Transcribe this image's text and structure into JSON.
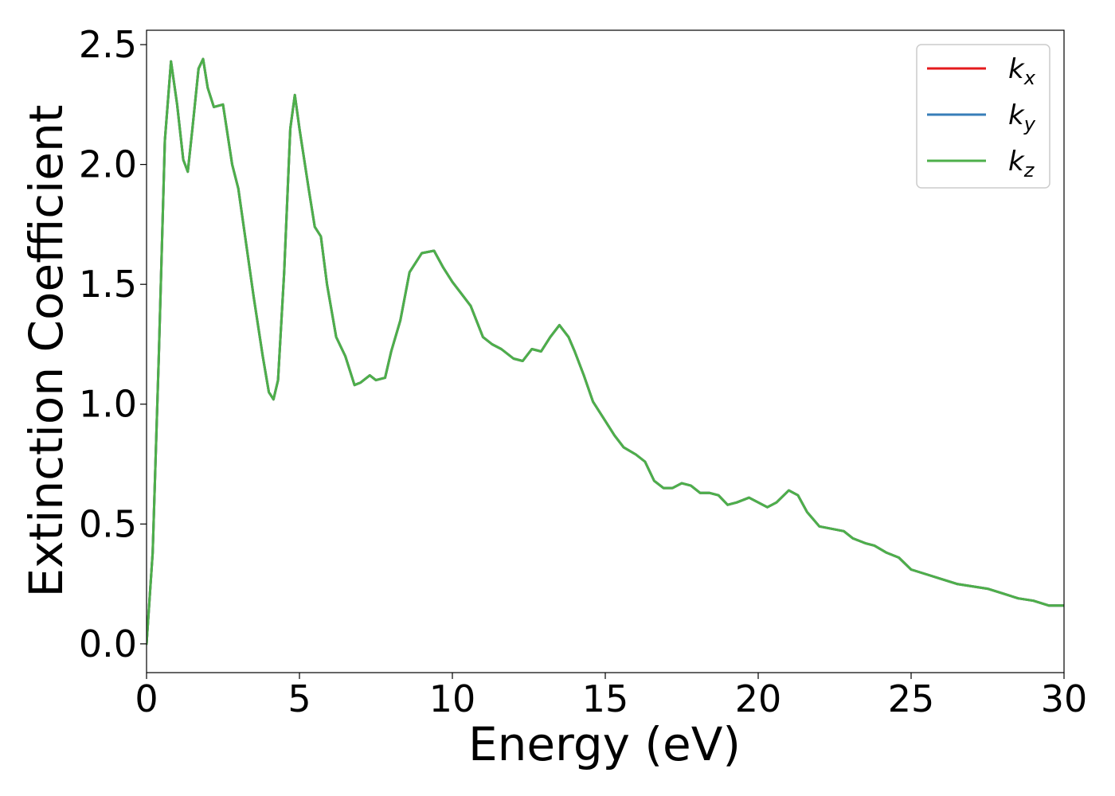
{
  "chart_data": {
    "type": "line",
    "title": "",
    "xlabel": "Energy (eV)",
    "ylabel": "Extinction Coefficient",
    "xlim": [
      0,
      30
    ],
    "ylim": [
      -0.12,
      2.56
    ],
    "xticks": [
      0,
      5,
      10,
      15,
      20,
      25,
      30
    ],
    "yticks": [
      0.0,
      0.5,
      1.0,
      1.5,
      2.0,
      2.5
    ],
    "xtick_labels": [
      "0",
      "5",
      "10",
      "15",
      "20",
      "25",
      "30"
    ],
    "ytick_labels": [
      "0.0",
      "0.5",
      "1.0",
      "1.5",
      "2.0",
      "2.5"
    ],
    "grid": false,
    "legend_position": "top-right",
    "x": [
      0,
      0.2,
      0.4,
      0.6,
      0.8,
      1.0,
      1.2,
      1.35,
      1.5,
      1.7,
      1.85,
      2.0,
      2.2,
      2.5,
      2.8,
      3.0,
      3.2,
      3.5,
      3.8,
      4.0,
      4.15,
      4.3,
      4.5,
      4.7,
      4.85,
      5.0,
      5.3,
      5.5,
      5.7,
      5.9,
      6.2,
      6.5,
      6.8,
      7.0,
      7.3,
      7.5,
      7.8,
      8.0,
      8.3,
      8.6,
      9.0,
      9.4,
      9.7,
      10.0,
      10.3,
      10.6,
      11.0,
      11.3,
      11.6,
      12.0,
      12.3,
      12.6,
      12.9,
      13.2,
      13.5,
      13.8,
      14.0,
      14.3,
      14.6,
      15.0,
      15.3,
      15.6,
      16.0,
      16.3,
      16.6,
      16.9,
      17.2,
      17.5,
      17.8,
      18.1,
      18.4,
      18.7,
      19.0,
      19.3,
      19.7,
      20.0,
      20.3,
      20.6,
      21.0,
      21.3,
      21.6,
      22.0,
      22.4,
      22.8,
      23.1,
      23.5,
      23.8,
      24.2,
      24.6,
      25.0,
      25.5,
      26.0,
      26.5,
      27.0,
      27.5,
      28.0,
      28.5,
      29.0,
      29.5,
      30.0
    ],
    "series": [
      {
        "name": "k_x",
        "color": "#e41a1c",
        "values": [
          0.0,
          0.38,
          1.2,
          2.1,
          2.43,
          2.25,
          2.02,
          1.97,
          2.15,
          2.4,
          2.44,
          2.32,
          2.24,
          2.25,
          2.0,
          1.9,
          1.72,
          1.45,
          1.2,
          1.05,
          1.02,
          1.1,
          1.55,
          2.15,
          2.29,
          2.15,
          1.9,
          1.74,
          1.7,
          1.5,
          1.28,
          1.2,
          1.08,
          1.09,
          1.12,
          1.1,
          1.11,
          1.22,
          1.35,
          1.55,
          1.63,
          1.64,
          1.57,
          1.51,
          1.46,
          1.41,
          1.28,
          1.25,
          1.23,
          1.19,
          1.18,
          1.23,
          1.22,
          1.28,
          1.33,
          1.28,
          1.22,
          1.12,
          1.01,
          0.93,
          0.87,
          0.82,
          0.79,
          0.76,
          0.68,
          0.65,
          0.65,
          0.67,
          0.66,
          0.63,
          0.63,
          0.62,
          0.58,
          0.59,
          0.61,
          0.59,
          0.57,
          0.59,
          0.64,
          0.62,
          0.55,
          0.49,
          0.48,
          0.47,
          0.44,
          0.42,
          0.41,
          0.38,
          0.36,
          0.31,
          0.29,
          0.27,
          0.25,
          0.24,
          0.23,
          0.21,
          0.19,
          0.18,
          0.16,
          0.16
        ]
      },
      {
        "name": "k_y",
        "color": "#377eb8",
        "values": [
          0.0,
          0.38,
          1.2,
          2.1,
          2.43,
          2.25,
          2.02,
          1.97,
          2.15,
          2.4,
          2.44,
          2.32,
          2.24,
          2.25,
          2.0,
          1.9,
          1.72,
          1.45,
          1.2,
          1.05,
          1.02,
          1.1,
          1.55,
          2.15,
          2.29,
          2.15,
          1.9,
          1.74,
          1.7,
          1.5,
          1.28,
          1.2,
          1.08,
          1.09,
          1.12,
          1.1,
          1.11,
          1.22,
          1.35,
          1.55,
          1.63,
          1.64,
          1.57,
          1.51,
          1.46,
          1.41,
          1.28,
          1.25,
          1.23,
          1.19,
          1.18,
          1.23,
          1.22,
          1.28,
          1.33,
          1.28,
          1.22,
          1.12,
          1.01,
          0.93,
          0.87,
          0.82,
          0.79,
          0.76,
          0.68,
          0.65,
          0.65,
          0.67,
          0.66,
          0.63,
          0.63,
          0.62,
          0.58,
          0.59,
          0.61,
          0.59,
          0.57,
          0.59,
          0.64,
          0.62,
          0.55,
          0.49,
          0.48,
          0.47,
          0.44,
          0.42,
          0.41,
          0.38,
          0.36,
          0.31,
          0.29,
          0.27,
          0.25,
          0.24,
          0.23,
          0.21,
          0.19,
          0.18,
          0.16,
          0.16
        ]
      },
      {
        "name": "k_z",
        "color": "#4daf4a",
        "values": [
          0.0,
          0.38,
          1.2,
          2.1,
          2.43,
          2.25,
          2.02,
          1.97,
          2.15,
          2.4,
          2.44,
          2.32,
          2.24,
          2.25,
          2.0,
          1.9,
          1.72,
          1.45,
          1.2,
          1.05,
          1.02,
          1.1,
          1.55,
          2.15,
          2.29,
          2.15,
          1.9,
          1.74,
          1.7,
          1.5,
          1.28,
          1.2,
          1.08,
          1.09,
          1.12,
          1.1,
          1.11,
          1.22,
          1.35,
          1.55,
          1.63,
          1.64,
          1.57,
          1.51,
          1.46,
          1.41,
          1.28,
          1.25,
          1.23,
          1.19,
          1.18,
          1.23,
          1.22,
          1.28,
          1.33,
          1.28,
          1.22,
          1.12,
          1.01,
          0.93,
          0.87,
          0.82,
          0.79,
          0.76,
          0.68,
          0.65,
          0.65,
          0.67,
          0.66,
          0.63,
          0.63,
          0.62,
          0.58,
          0.59,
          0.61,
          0.59,
          0.57,
          0.59,
          0.64,
          0.62,
          0.55,
          0.49,
          0.48,
          0.47,
          0.44,
          0.42,
          0.41,
          0.38,
          0.36,
          0.31,
          0.29,
          0.27,
          0.25,
          0.24,
          0.23,
          0.21,
          0.19,
          0.18,
          0.16,
          0.16
        ]
      }
    ],
    "legend": [
      {
        "base": "k",
        "sub": "x",
        "color": "#e41a1c"
      },
      {
        "base": "k",
        "sub": "y",
        "color": "#377eb8"
      },
      {
        "base": "k",
        "sub": "z",
        "color": "#4daf4a"
      }
    ]
  }
}
